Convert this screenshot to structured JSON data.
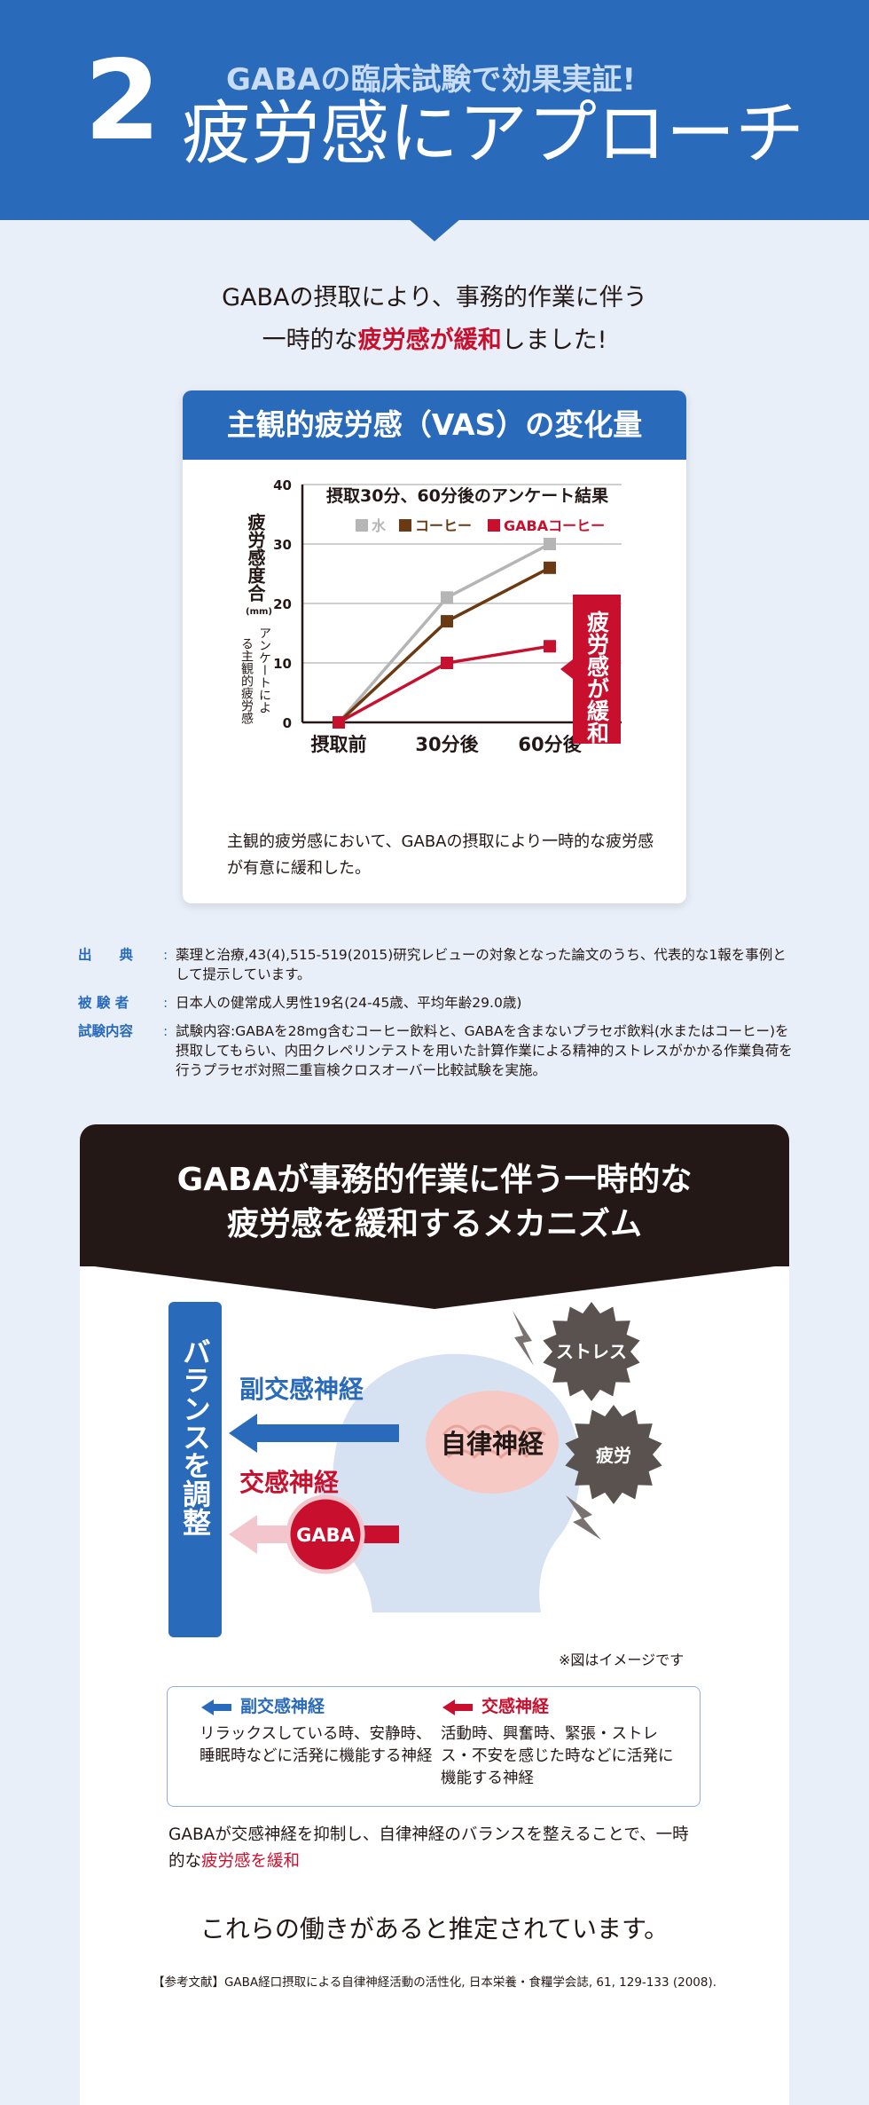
{
  "hero": {
    "number": "2",
    "subtitle": "GABAの臨床試験で効果実証!",
    "title": "疲労感にアプローチ"
  },
  "intro": {
    "line1": "GABAの摂取により、事務的作業に伴う",
    "line2_pre": "一時的な",
    "line2_em": "疲労感が緩和",
    "line2_post": "しました!"
  },
  "chart_card": {
    "heading": "主観的疲労感（VAS）の変化量",
    "note": "主観的疲労感において、GABAの摂取により一時的な疲労感が有意に緩和した。"
  },
  "chart_data": {
    "type": "line",
    "title": "摂取30分、60分後のアンケート結果",
    "ylabel": "疲労感度合",
    "ylabel_unit": "(mm)",
    "ylabel_sub": "アンケートによる主観的疲労感",
    "categories": [
      "摂取前",
      "30分後",
      "60分後"
    ],
    "ylim": [
      0,
      40
    ],
    "yticks": [
      0,
      10,
      20,
      30,
      40
    ],
    "grid": true,
    "legend_position": "top",
    "series": [
      {
        "name": "水",
        "color": "#b5b5b5",
        "values": [
          0,
          21,
          30
        ]
      },
      {
        "name": "コーヒー",
        "color": "#6b3a13",
        "values": [
          0,
          17,
          26
        ]
      },
      {
        "name": "GABAコーヒー",
        "color": "#c8102e",
        "values": [
          0,
          10,
          12.8
        ]
      }
    ],
    "callout": "疲労感が緩和"
  },
  "references": [
    {
      "key": "出　　典",
      "value": "薬理と治療,43(4),515-519(2015)研究レビューの対象となった論文のうち、代表的な1報を事例として提示しています。"
    },
    {
      "key": "被 験 者",
      "value": "日本人の健常成人男性19名(24-45歳、平均年齢29.0歳)"
    },
    {
      "key": "試験内容",
      "value": "試験内容:GABAを28mg含むコーヒー飲料と、GABAを含まないプラセボ飲料(水またはコーヒー)を摂取してもらい、内田クレペリンテストを用いた計算作業による精神的ストレスがかかる作業負荷を行うプラセボ対照二重盲検クロスオーバー比較試験を実施。"
    }
  ],
  "mechanism": {
    "title_line1": "GABAが事務的作業に伴う一時的な",
    "title_line2": "疲労感を緩和するメカニズム",
    "balance_label": "バランスを調整",
    "parasympathetic": "副交感神経",
    "sympathetic": "交感神経",
    "gaba_badge": "GABA",
    "autonomic": "自律神経",
    "stress": "ストレス",
    "fatigue": "疲労",
    "disclaimer": "※図はイメージです",
    "legend": {
      "para_title": "副交感神経",
      "para_text": "リラックスしている時、安静時、睡眠時などに活発に機能する神経",
      "sym_title": "交感神経",
      "sym_text": "活動時、興奮時、緊張・ストレス・不安を感じた時などに活発に機能する神経"
    },
    "note_pre": "GABAが交感神経を抑制し、自律神経のバランスを整えることで、一時的な",
    "note_em": "疲労感を緩和",
    "conclusion": "これらの働きがあると推定されています。",
    "reference": "【参考文献】GABA経口摂取による自律神経活動の活性化, 日本栄養・食糧学会誌, 61, 129-133 (2008)."
  },
  "colors": {
    "brand_blue": "#2a6abb",
    "accent_red": "#c8102e",
    "dark": "#231815",
    "background": "#e9eff8"
  }
}
